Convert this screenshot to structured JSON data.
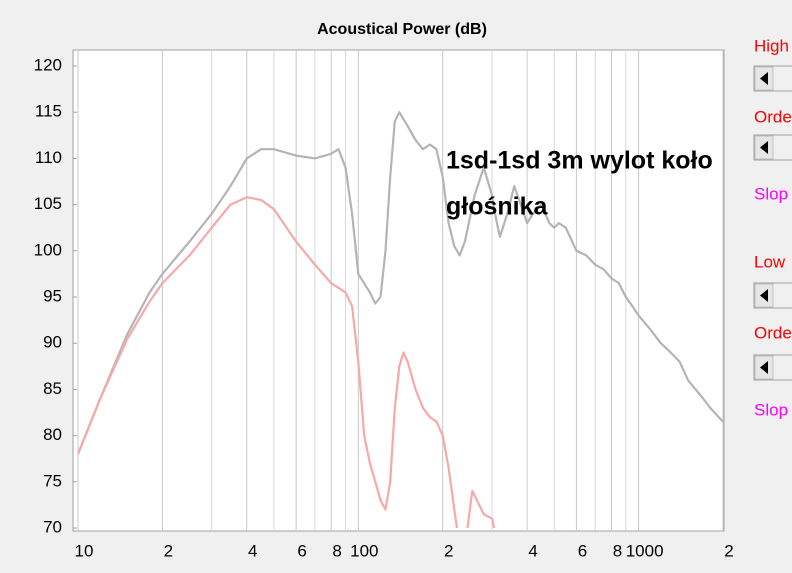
{
  "chart_data": {
    "type": "line",
    "title": "Acoustical Power (dB)",
    "xscale": "log",
    "xlim": [
      10,
      2000
    ],
    "ylim": [
      70,
      120
    ],
    "xticks": [
      {
        "value": 10,
        "label": "10"
      },
      {
        "value": 20,
        "label": "2"
      },
      {
        "value": 40,
        "label": "4"
      },
      {
        "value": 60,
        "label": "6"
      },
      {
        "value": 80,
        "label": "8"
      },
      {
        "value": 100,
        "label": "100"
      },
      {
        "value": 200,
        "label": "2"
      },
      {
        "value": 400,
        "label": "4"
      },
      {
        "value": 600,
        "label": "6"
      },
      {
        "value": 800,
        "label": "8"
      },
      {
        "value": 1000,
        "label": "1000"
      },
      {
        "value": 2000,
        "label": "2"
      }
    ],
    "xminor": [
      30,
      50,
      70,
      90,
      300,
      500,
      700,
      900
    ],
    "yticks": [
      70,
      75,
      80,
      85,
      90,
      95,
      100,
      105,
      110,
      115,
      120
    ],
    "grid": "x",
    "series": [
      {
        "color": "#b4b4b4",
        "x": [
          10,
          12,
          15,
          18,
          20,
          25,
          30,
          35,
          40,
          45,
          50,
          60,
          70,
          80,
          85,
          90,
          95,
          100,
          110,
          115,
          120,
          125,
          130,
          135,
          140,
          150,
          160,
          170,
          180,
          190,
          200,
          210,
          220,
          230,
          240,
          260,
          280,
          300,
          310,
          320,
          340,
          360,
          380,
          400,
          420,
          450,
          480,
          500,
          520,
          550,
          600,
          650,
          700,
          750,
          800,
          850,
          900,
          950,
          1000,
          1100,
          1200,
          1300,
          1400,
          1500,
          1700,
          1800,
          2000
        ],
        "values": [
          78,
          84,
          91,
          95.5,
          97.5,
          101,
          104,
          107,
          110,
          111,
          111,
          110.3,
          110,
          110.5,
          111,
          109,
          104,
          97.5,
          95.5,
          94.3,
          95,
          100,
          108,
          114,
          115,
          113.5,
          112,
          111,
          111.5,
          111,
          108,
          103,
          100.5,
          99.5,
          101,
          106,
          109,
          106,
          103.5,
          101.5,
          104,
          107,
          105,
          103,
          104,
          105,
          103,
          102.5,
          103,
          102.5,
          100,
          99.5,
          98.5,
          98,
          97,
          96.5,
          95,
          94,
          93,
          91.5,
          90,
          89,
          88,
          86,
          84,
          83,
          81.5
        ]
      },
      {
        "color": "#f7a8a8",
        "x": [
          10,
          12,
          15,
          18,
          20,
          25,
          30,
          35,
          40,
          45,
          50,
          60,
          70,
          80,
          90,
          95,
          100,
          105,
          110,
          115,
          120,
          125,
          130,
          135,
          140,
          145,
          150,
          160,
          170,
          180,
          190,
          200,
          210,
          220,
          230,
          240,
          245,
          255,
          265,
          280,
          300,
          305
        ],
        "values": [
          78,
          84,
          90.5,
          94.5,
          96.5,
          99.5,
          102.5,
          105,
          105.8,
          105.5,
          104.5,
          101,
          98.5,
          96.5,
          95.5,
          94,
          88,
          80,
          77,
          75,
          73,
          72,
          75,
          83,
          87.5,
          89,
          88,
          85,
          83,
          82,
          81.5,
          80,
          76.5,
          72,
          68,
          null,
          70,
          74,
          73,
          71.5,
          71,
          70
        ]
      }
    ],
    "annotation": [
      "1sd-1sd 3m wylot koło",
      "głośnika"
    ]
  },
  "side_panel": {
    "labels": [
      "High",
      "Orde",
      "Slop",
      "Low",
      "Orde",
      "Slop"
    ]
  }
}
